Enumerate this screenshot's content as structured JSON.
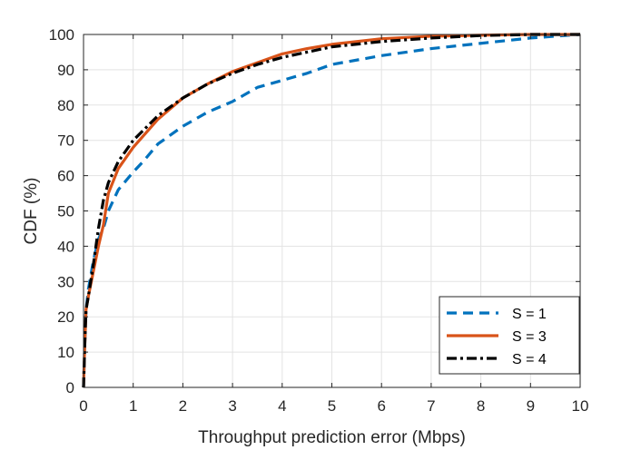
{
  "chart_data": {
    "type": "line",
    "title": "",
    "xlabel": "Throughput prediction error (Mbps)",
    "ylabel": "CDF (%)",
    "xlim": [
      0,
      10
    ],
    "ylim": [
      0,
      100
    ],
    "x_ticks": [
      "0",
      "1",
      "2",
      "3",
      "4",
      "5",
      "6",
      "7",
      "8",
      "9",
      "10"
    ],
    "y_ticks": [
      "0",
      "10",
      "20",
      "30",
      "40",
      "50",
      "60",
      "70",
      "80",
      "90",
      "100"
    ],
    "grid": true,
    "legend_position": "bottom-right",
    "series": [
      {
        "name": "S = 1",
        "color": "#0072BD",
        "dash": "dashed",
        "points": [
          [
            0,
            0
          ],
          [
            0.02,
            10
          ],
          [
            0.05,
            22
          ],
          [
            0.1,
            28
          ],
          [
            0.2,
            36
          ],
          [
            0.3,
            42
          ],
          [
            0.4,
            45
          ],
          [
            0.5,
            50
          ],
          [
            0.7,
            56
          ],
          [
            1.0,
            61
          ],
          [
            1.2,
            64
          ],
          [
            1.5,
            69
          ],
          [
            2.0,
            74
          ],
          [
            2.5,
            78
          ],
          [
            3.0,
            81
          ],
          [
            3.5,
            85
          ],
          [
            4.0,
            87
          ],
          [
            4.5,
            89
          ],
          [
            5.0,
            91.5
          ],
          [
            6.0,
            94
          ],
          [
            7.0,
            96
          ],
          [
            8.0,
            97.5
          ],
          [
            9.0,
            99
          ],
          [
            10.0,
            100
          ]
        ]
      },
      {
        "name": "S = 3",
        "color": "#D95319",
        "dash": "solid",
        "points": [
          [
            0,
            0
          ],
          [
            0.02,
            10
          ],
          [
            0.05,
            22
          ],
          [
            0.1,
            26
          ],
          [
            0.2,
            33
          ],
          [
            0.3,
            40
          ],
          [
            0.4,
            46
          ],
          [
            0.5,
            55
          ],
          [
            0.7,
            62
          ],
          [
            1.0,
            68
          ],
          [
            1.5,
            76
          ],
          [
            2.0,
            82
          ],
          [
            2.5,
            86
          ],
          [
            3.0,
            89.5
          ],
          [
            3.5,
            92
          ],
          [
            4.0,
            94.5
          ],
          [
            4.5,
            96
          ],
          [
            5.0,
            97.2
          ],
          [
            6.0,
            98.8
          ],
          [
            7.0,
            99.5
          ],
          [
            8.0,
            99.8
          ],
          [
            9.0,
            100
          ],
          [
            10.0,
            100
          ]
        ]
      },
      {
        "name": "S = 4",
        "color": "#000000",
        "dash": "dashdot",
        "points": [
          [
            0,
            0
          ],
          [
            0.02,
            10
          ],
          [
            0.05,
            22
          ],
          [
            0.1,
            26
          ],
          [
            0.2,
            35
          ],
          [
            0.3,
            45
          ],
          [
            0.4,
            53
          ],
          [
            0.5,
            58
          ],
          [
            0.7,
            64
          ],
          [
            1.0,
            70
          ],
          [
            1.5,
            77
          ],
          [
            2.0,
            82
          ],
          [
            2.5,
            86
          ],
          [
            3.0,
            89
          ],
          [
            3.5,
            91.5
          ],
          [
            4.0,
            93.5
          ],
          [
            4.5,
            95
          ],
          [
            5.0,
            96.5
          ],
          [
            6.0,
            98
          ],
          [
            7.0,
            99
          ],
          [
            8.0,
            99.7
          ],
          [
            9.0,
            100
          ],
          [
            10.0,
            100
          ]
        ]
      }
    ]
  }
}
